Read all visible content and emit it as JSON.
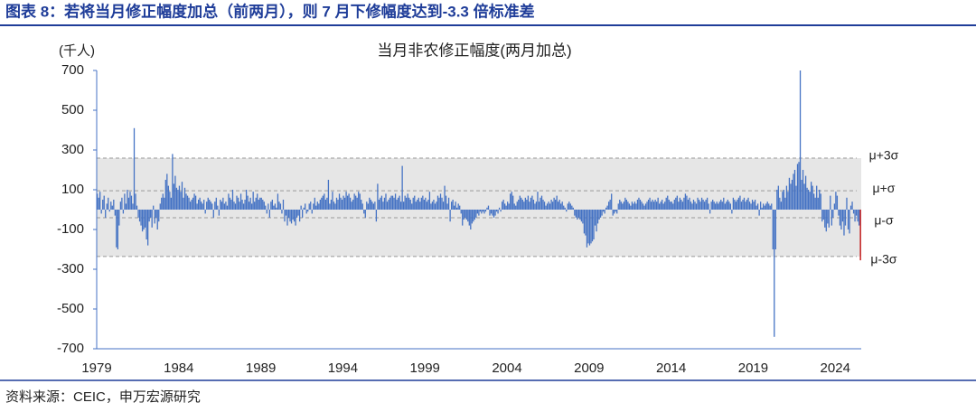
{
  "header": {
    "title": "图表 8：若将当月修正幅度加总（前两月），则 7 月下修幅度达到-3.3 倍标准差"
  },
  "footer": {
    "source": "资料来源：CEIC，申万宏源研究"
  },
  "chart_data": {
    "type": "bar",
    "title": "当月非农修正幅度(两月加总)",
    "y_label": "(千人)",
    "ylim": [
      -700,
      700
    ],
    "yticks": [
      -700,
      -500,
      -300,
      -100,
      100,
      300,
      500,
      700
    ],
    "highlight_last_color": "#c00000",
    "band_color": "#e6e6e6",
    "reference_lines": [
      {
        "value": 259,
        "label": "μ+3σ"
      },
      {
        "value": 95,
        "label": "μ+σ"
      },
      {
        "value": -41,
        "label": "μ-σ"
      },
      {
        "value": -236,
        "label": "μ-3σ"
      }
    ],
    "categories": [
      "1979",
      null,
      null,
      null,
      null,
      null,
      null,
      null,
      null,
      null,
      null,
      null,
      null,
      null,
      null,
      null,
      null,
      null,
      null,
      null,
      null,
      null,
      null,
      null,
      null,
      null,
      null,
      null,
      null,
      null,
      null,
      null,
      null,
      null,
      null,
      null,
      null,
      null,
      null,
      null,
      null,
      null,
      null,
      null,
      null,
      null,
      null,
      null,
      null,
      null,
      null,
      null,
      null,
      null,
      null,
      null,
      null,
      null,
      null,
      null,
      "1984",
      null,
      null,
      null,
      null,
      null,
      null,
      null,
      null,
      null,
      null,
      null,
      null,
      null,
      null,
      null,
      null,
      null,
      null,
      null,
      null,
      null,
      null,
      null,
      null,
      null,
      null,
      null,
      null,
      null,
      null,
      null,
      null,
      null,
      null,
      null,
      null,
      null,
      null,
      null,
      null,
      null,
      null,
      null,
      null,
      null,
      null,
      null,
      null,
      null,
      null,
      null,
      null,
      null,
      null,
      null,
      null,
      null,
      null,
      null,
      "1989",
      null,
      null,
      null,
      null,
      null,
      null,
      null,
      null,
      null,
      null,
      null,
      null,
      null,
      null,
      null,
      null,
      null,
      null,
      null,
      null,
      null,
      null,
      null,
      null,
      null,
      null,
      null,
      null,
      null,
      null,
      null,
      null,
      null,
      null,
      null,
      null,
      null,
      null,
      null,
      null,
      null,
      null,
      null,
      null,
      null,
      null,
      null,
      null,
      null,
      null,
      null,
      null,
      null,
      null,
      null,
      null,
      null,
      null,
      null,
      "1994",
      null,
      null,
      null,
      null,
      null,
      null,
      null,
      null,
      null,
      null,
      null,
      null,
      null,
      null,
      null,
      null,
      null,
      null,
      null,
      null,
      null,
      null,
      null,
      null,
      null,
      null,
      null,
      null,
      null,
      null,
      null,
      null,
      null,
      null,
      null,
      null,
      null,
      null,
      null,
      null,
      null,
      null,
      null,
      null,
      null,
      null,
      null,
      null,
      null,
      null,
      null,
      null,
      null,
      null,
      null,
      null,
      null,
      null,
      null,
      "1999",
      null,
      null,
      null,
      null,
      null,
      null,
      null,
      null,
      null,
      null,
      null,
      null,
      null,
      null,
      null,
      null,
      null,
      null,
      null,
      null,
      null,
      null,
      null,
      null,
      null,
      null,
      null,
      null,
      null,
      null,
      null,
      null,
      null,
      null,
      null,
      null,
      null,
      null,
      null,
      null,
      null,
      null,
      null,
      null,
      null,
      null,
      null,
      null,
      null,
      null,
      null,
      null,
      null,
      null,
      null,
      null,
      null,
      null,
      null,
      "2004",
      null,
      null,
      null,
      null,
      null,
      null,
      null,
      null,
      null,
      null,
      null,
      null,
      null,
      null,
      null,
      null,
      null,
      null,
      null,
      null,
      null,
      null,
      null,
      null,
      null,
      null,
      null,
      null,
      null,
      null,
      null,
      null,
      null,
      null,
      null,
      null,
      null,
      null,
      null,
      null,
      null,
      null,
      null,
      null,
      null,
      null,
      null,
      null,
      null,
      null,
      null,
      null,
      null,
      null,
      null,
      null,
      null,
      null,
      null,
      "2009",
      null,
      null,
      null,
      null,
      null,
      null,
      null,
      null,
      null,
      null,
      null,
      null,
      null,
      null,
      null,
      null,
      null,
      null,
      null,
      null,
      null,
      null,
      null,
      null,
      null,
      null,
      null,
      null,
      null,
      null,
      null,
      null,
      null,
      null,
      null,
      null,
      null,
      null,
      null,
      null,
      null,
      null,
      null,
      null,
      null,
      null,
      null,
      null,
      null,
      null,
      null,
      null,
      null,
      null,
      null,
      null,
      null,
      null,
      null,
      "2014",
      null,
      null,
      null,
      null,
      null,
      null,
      null,
      null,
      null,
      null,
      null,
      null,
      null,
      null,
      null,
      null,
      null,
      null,
      null,
      null,
      null,
      null,
      null,
      null,
      null,
      null,
      null,
      null,
      null,
      null,
      null,
      null,
      null,
      null,
      null,
      null,
      null,
      null,
      null,
      null,
      null,
      null,
      null,
      null,
      null,
      null,
      null,
      null,
      null,
      null,
      null,
      null,
      null,
      null,
      null,
      null,
      null,
      null,
      null,
      "2019",
      null,
      null,
      null,
      null,
      null,
      null,
      null,
      null,
      null,
      null,
      null,
      null,
      null,
      null,
      null,
      null,
      null,
      null,
      null,
      null,
      null,
      null,
      null,
      null,
      null,
      null,
      null,
      null,
      null,
      null,
      null,
      null,
      null,
      null,
      null,
      null,
      null,
      null,
      null,
      null,
      null,
      null,
      null,
      null,
      null,
      null,
      null,
      null,
      null,
      null,
      null,
      null,
      null,
      null,
      null,
      null,
      null,
      null,
      null,
      "2024",
      null,
      null,
      null,
      null,
      null,
      null,
      null,
      null,
      null,
      null,
      null,
      null,
      null,
      null,
      null,
      null,
      null,
      null
    ],
    "series": [
      {
        "color": "#4472c4",
        "values": [
          80,
          60,
          90,
          -20,
          50,
          70,
          -40,
          30,
          60,
          -10,
          40,
          20,
          50,
          -30,
          -190,
          -200,
          -80,
          40,
          60,
          -20,
          80,
          30,
          100,
          60,
          90,
          70,
          30,
          410,
          80,
          20,
          -40,
          -60,
          -80,
          -110,
          -100,
          -90,
          -150,
          -180,
          -60,
          -40,
          -90,
          20,
          -70,
          -40,
          -100,
          -60,
          30,
          60,
          80,
          60,
          150,
          180,
          120,
          90,
          60,
          280,
          130,
          170,
          110,
          100,
          120,
          90,
          140,
          60,
          110,
          80,
          70,
          60,
          40,
          50,
          60,
          80,
          70,
          30,
          50,
          60,
          40,
          30,
          50,
          -20,
          40,
          60,
          50,
          40,
          30,
          -40,
          40,
          60,
          20,
          -30,
          50,
          40,
          60,
          30,
          40,
          20,
          80,
          60,
          50,
          100,
          40,
          30,
          70,
          60,
          40,
          80,
          50,
          30,
          50,
          100,
          70,
          40,
          60,
          30,
          90,
          40,
          60,
          80,
          50,
          60,
          60,
          50,
          40,
          20,
          -20,
          30,
          -40,
          40,
          50,
          20,
          30,
          10,
          80,
          40,
          30,
          -20,
          50,
          -60,
          -30,
          -80,
          -40,
          -60,
          -70,
          -50,
          -60,
          -80,
          -40,
          -30,
          -60,
          20,
          -40,
          10,
          30,
          -20,
          -10,
          30,
          40,
          -20,
          30,
          60,
          20,
          40,
          30,
          50,
          60,
          70,
          80,
          50,
          60,
          150,
          30,
          50,
          90,
          40,
          30,
          60,
          50,
          80,
          60,
          50,
          70,
          60,
          90,
          70,
          80,
          60,
          40,
          50,
          80,
          70,
          60,
          90,
          80,
          50,
          30,
          -20,
          -40,
          40,
          30,
          60,
          50,
          40,
          30,
          40,
          -60,
          130,
          50,
          60,
          70,
          40,
          60,
          80,
          40,
          50,
          60,
          70,
          70,
          60,
          80,
          50,
          60,
          70,
          40,
          220,
          40,
          70,
          60,
          80,
          60,
          50,
          30,
          60,
          70,
          40,
          50,
          60,
          40,
          60,
          70,
          50,
          60,
          40,
          50,
          90,
          30,
          40,
          50,
          30,
          40,
          70,
          60,
          80,
          60,
          40,
          120,
          70,
          30,
          60,
          -60,
          40,
          50,
          20,
          40,
          10,
          30,
          20,
          -20,
          -80,
          -50,
          -40,
          -50,
          -60,
          -80,
          -100,
          -70,
          -60,
          -50,
          -40,
          -20,
          -30,
          -10,
          -20,
          -10,
          -20,
          -10,
          10,
          20,
          -30,
          -20,
          -30,
          -40,
          -30,
          -10,
          -20,
          10,
          -10,
          40,
          50,
          30,
          20,
          40,
          30,
          80,
          90,
          70,
          30,
          20,
          40,
          50,
          70,
          60,
          50,
          40,
          60,
          50,
          70,
          40,
          60,
          70,
          50,
          30,
          40,
          90,
          40,
          60,
          70,
          50,
          40,
          20,
          30,
          40,
          30,
          50,
          40,
          60,
          50,
          70,
          40,
          50,
          30,
          40,
          20,
          10,
          -10,
          30,
          40,
          30,
          20,
          10,
          -30,
          -40,
          -50,
          -40,
          -50,
          -60,
          -70,
          -120,
          -130,
          -190,
          -170,
          -180,
          -170,
          -160,
          -150,
          -80,
          -110,
          -70,
          -50,
          -40,
          -30,
          -10,
          -20,
          10,
          20,
          40,
          50,
          80,
          -30,
          -20,
          -10,
          -20,
          30,
          50,
          40,
          30,
          40,
          60,
          50,
          40,
          30,
          20,
          40,
          30,
          40,
          30,
          50,
          60,
          50,
          40,
          30,
          20,
          30,
          40,
          50,
          60,
          40,
          50,
          40,
          50,
          40,
          60,
          30,
          40,
          50,
          30,
          40,
          60,
          70,
          50,
          40,
          40,
          30,
          50,
          60,
          70,
          40,
          60,
          50,
          40,
          60,
          80,
          70,
          50,
          60,
          40,
          30,
          50,
          40,
          30,
          60,
          50,
          40,
          60,
          50,
          40,
          50,
          60,
          30,
          -20,
          40,
          50,
          40,
          30,
          40,
          30,
          40,
          50,
          40,
          60,
          30,
          40,
          50,
          40,
          30,
          -20,
          60,
          50,
          40,
          50,
          60,
          70,
          40,
          50,
          60,
          40,
          50,
          60,
          40,
          30,
          50,
          40,
          50,
          20,
          30,
          -30,
          40,
          10,
          30,
          20,
          30,
          40,
          30,
          20,
          30,
          -200,
          -640,
          -200,
          100,
          120,
          60,
          40,
          90,
          100,
          60,
          120,
          90,
          160,
          130,
          150,
          180,
          200,
          120,
          230,
          240,
          700,
          150,
          200,
          130,
          170,
          110,
          100,
          90,
          140,
          120,
          80,
          60,
          120,
          60,
          100,
          80,
          -60,
          -50,
          -90,
          -110,
          -70,
          -90,
          70,
          -80,
          -40,
          30,
          90,
          70,
          -30,
          -80,
          -100,
          -60,
          -130,
          -80,
          60,
          -100,
          -120,
          20,
          40,
          -20,
          -60,
          -30,
          -60,
          -80,
          -255
        ]
      }
    ]
  }
}
